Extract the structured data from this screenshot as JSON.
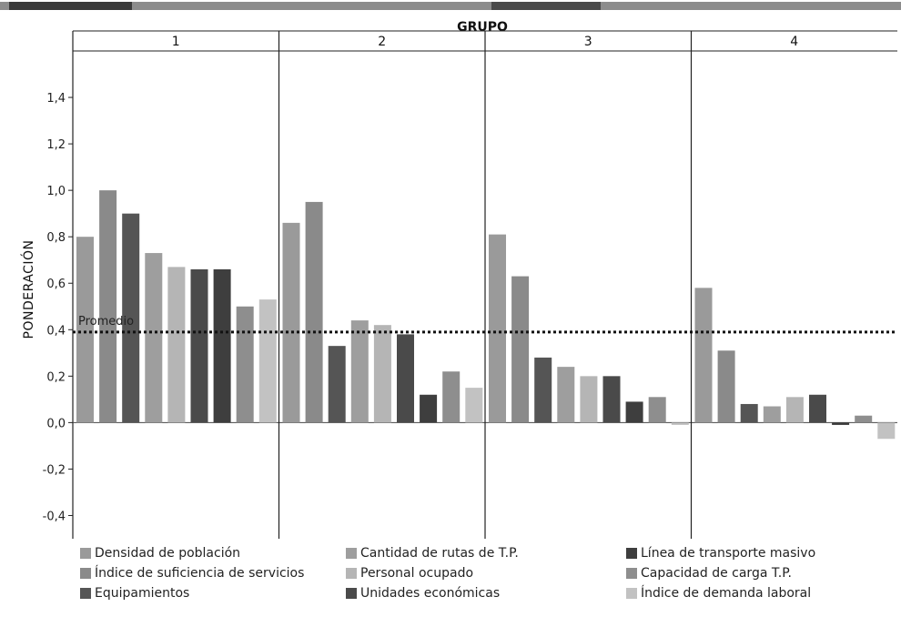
{
  "chart_data": {
    "type": "bar",
    "super_axis_title": "GRUPO",
    "groups": [
      "1",
      "2",
      "3",
      "4"
    ],
    "ylabel": "PONDERACIÓN",
    "ylim": [
      -0.5,
      1.6
    ],
    "yticks": [
      -0.4,
      -0.2,
      0.0,
      0.2,
      0.4,
      0.6,
      0.8,
      1.0,
      1.2,
      1.4
    ],
    "ytick_labels": [
      "-0,4",
      "-0,2",
      "0,0",
      "0,2",
      "0,4",
      "0,6",
      "0,8",
      "1,0",
      "1,2",
      "1,4"
    ],
    "reference_line": {
      "label": "Promedio",
      "value": 0.39,
      "style": "dotted"
    },
    "series": [
      {
        "name": "Densidad de población",
        "color": "#9a9a9a",
        "values": [
          0.8,
          0.86,
          0.81,
          0.58
        ]
      },
      {
        "name": "Índice de suficiencia de servicios",
        "color": "#8a8a8a",
        "values": [
          1.0,
          0.95,
          0.63,
          0.31
        ]
      },
      {
        "name": "Equipamientos",
        "color": "#555555",
        "values": [
          0.9,
          0.33,
          0.28,
          0.08
        ]
      },
      {
        "name": "Cantidad de rutas de T.P.",
        "color": "#9e9e9e",
        "values": [
          0.73,
          0.44,
          0.24,
          0.07
        ]
      },
      {
        "name": "Personal ocupado",
        "color": "#b5b5b5",
        "values": [
          0.67,
          0.42,
          0.2,
          0.11
        ]
      },
      {
        "name": "Unidades económicas",
        "color": "#4a4a4a",
        "values": [
          0.66,
          0.38,
          0.2,
          0.12
        ]
      },
      {
        "name": "Línea de transporte masivo",
        "color": "#3e3e3e",
        "values": [
          0.66,
          0.12,
          0.09,
          -0.01
        ]
      },
      {
        "name": "Capacidad de carga T.P.",
        "color": "#8e8e8e",
        "values": [
          0.5,
          0.22,
          0.11,
          0.03
        ]
      },
      {
        "name": "Índice de demanda laboral",
        "color": "#c2c2c2",
        "values": [
          0.53,
          0.15,
          -0.01,
          -0.07
        ]
      }
    ],
    "legend_position": "bottom"
  }
}
